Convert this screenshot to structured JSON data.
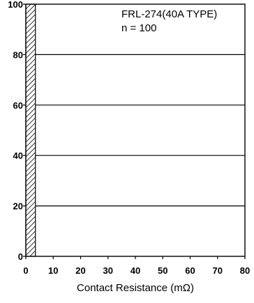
{
  "chart_data": {
    "type": "bar",
    "xlabel": "Contact Resistance (mΩ)",
    "ylabel": "",
    "xlim": [
      0,
      80
    ],
    "ylim": [
      0,
      100
    ],
    "x_ticks": [
      "0",
      "10",
      "20",
      "30",
      "40",
      "50",
      "60",
      "70",
      "80"
    ],
    "y_ticks": [
      "0",
      "20",
      "40",
      "60",
      "80",
      "100"
    ],
    "grid": "horizontal",
    "bars": [
      {
        "x_start": 0,
        "x_end": 3.5,
        "value": 100,
        "pattern": "hatched"
      }
    ],
    "annotations": {
      "model": "FRL-274(40A TYPE)",
      "sample": "n = 100"
    }
  }
}
